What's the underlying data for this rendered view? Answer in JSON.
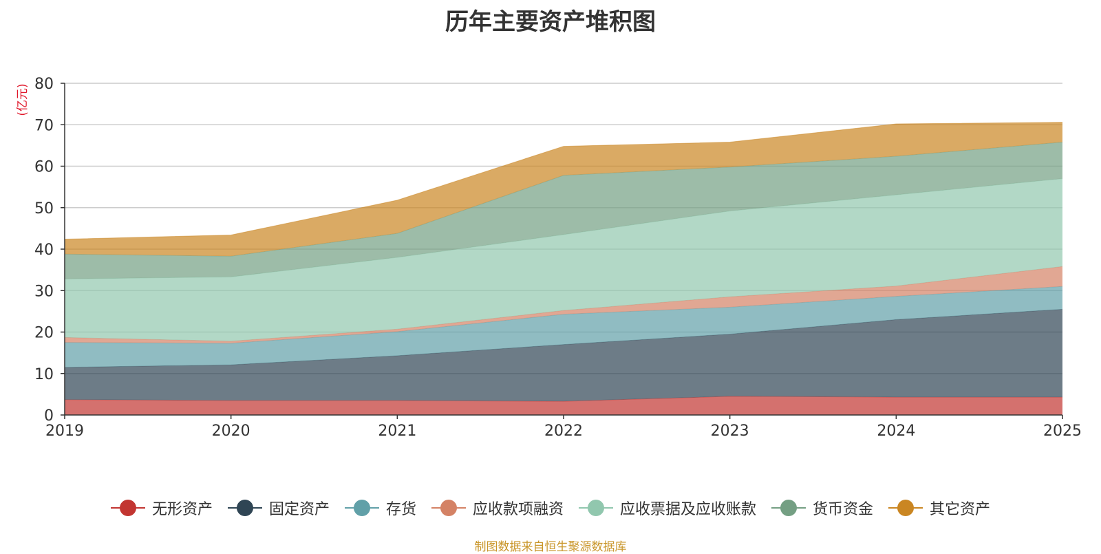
{
  "chart_data": {
    "type": "area",
    "stacked": true,
    "title": "历年主要资产堆积图",
    "ylabel": "(亿元)",
    "xlabel": "",
    "x": [
      "2019",
      "2020",
      "2021",
      "2022",
      "2023",
      "2024",
      "2025"
    ],
    "ylim": [
      0,
      80
    ],
    "yticks": [
      0,
      10,
      20,
      30,
      40,
      50,
      60,
      70,
      80
    ],
    "grid": true,
    "legend_position": "bottom",
    "series": [
      {
        "name": "无形资产",
        "color": "#c23531",
        "values": [
          3.7,
          3.5,
          3.5,
          3.3,
          4.5,
          4.3,
          4.3
        ]
      },
      {
        "name": "固定资产",
        "color": "#2f4554",
        "values": [
          7.8,
          8.6,
          10.8,
          13.7,
          15.0,
          18.7,
          21.2
        ]
      },
      {
        "name": "存货",
        "color": "#61a0a8",
        "values": [
          6.0,
          5.2,
          5.8,
          7.3,
          6.5,
          5.6,
          5.5
        ]
      },
      {
        "name": "应收款项融资",
        "color": "#d48265",
        "values": [
          1.2,
          0.5,
          0.6,
          0.9,
          2.5,
          2.5,
          4.8
        ]
      },
      {
        "name": "应收票据及应收账款",
        "color": "#91c7ae",
        "values": [
          14.1,
          15.5,
          17.3,
          18.3,
          20.7,
          22.0,
          21.2
        ]
      },
      {
        "name": "货币资金",
        "color": "#749f83",
        "values": [
          6.0,
          5.0,
          5.8,
          14.3,
          10.6,
          9.3,
          8.8
        ]
      },
      {
        "name": "其它资产",
        "color": "#ca8622",
        "values": [
          3.6,
          5.1,
          8.0,
          7.0,
          6.0,
          7.8,
          4.8
        ]
      }
    ]
  },
  "source_note": "制图数据来自恒生聚源数据库"
}
